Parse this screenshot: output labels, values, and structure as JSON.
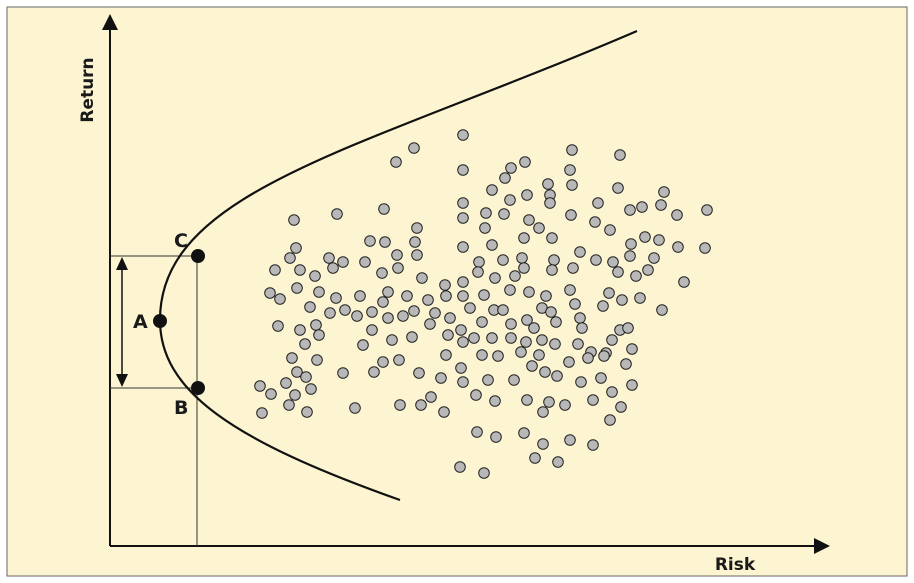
{
  "diagram": {
    "background_color": "#fdf5d2",
    "border_color": "#666666",
    "dot_fill": "#b8b8b8",
    "axes": {
      "x_label": "Risk",
      "y_label": "Return"
    },
    "points": [
      {
        "id": "A",
        "label": "A"
      },
      {
        "id": "B",
        "label": "B"
      },
      {
        "id": "C",
        "label": "C"
      }
    ]
  }
}
